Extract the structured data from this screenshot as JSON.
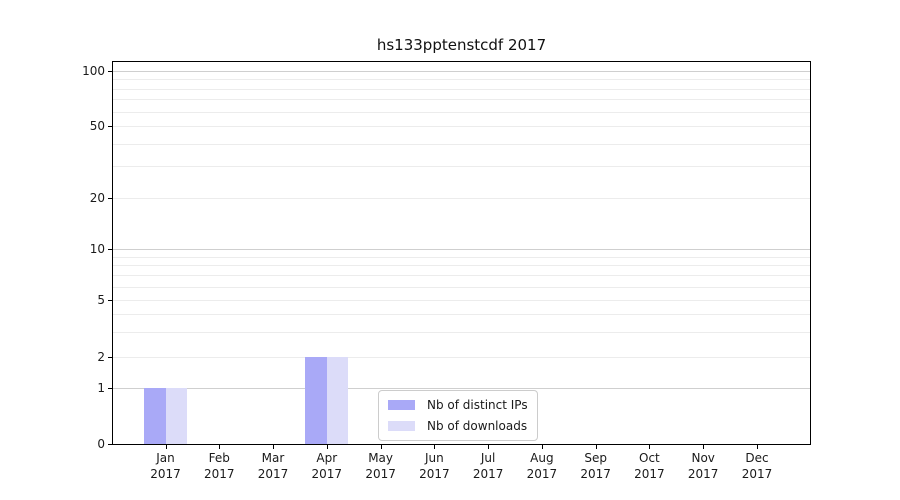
{
  "chart_data": {
    "type": "bar",
    "title": "hs133pptenstcdf 2017",
    "year_label": "2017",
    "categories": [
      "Jan",
      "Feb",
      "Mar",
      "Apr",
      "May",
      "Jun",
      "Jul",
      "Aug",
      "Sep",
      "Oct",
      "Nov",
      "Dec"
    ],
    "series": [
      {
        "name": "Nb of distinct IPs",
        "color": "#a9a9f7",
        "values": [
          1,
          0,
          0,
          2,
          0,
          0,
          0,
          0,
          0,
          0,
          0,
          0
        ]
      },
      {
        "name": "Nb of downloads",
        "color": "#dcdcf9",
        "values": [
          1,
          0,
          0,
          2,
          0,
          0,
          0,
          0,
          0,
          0,
          0,
          0
        ]
      }
    ],
    "y_axis": {
      "scale": "symlog",
      "tick_labels": [
        0,
        1,
        2,
        5,
        10,
        20,
        50,
        100
      ],
      "major_gridlines": [
        1,
        10,
        100
      ],
      "minor_gridlines": [
        2,
        3,
        4,
        5,
        6,
        7,
        8,
        9,
        20,
        30,
        40,
        50,
        60,
        70,
        80,
        90
      ],
      "ylim": [
        0,
        115
      ]
    },
    "x_axis": {
      "tick_label_line2": "2017"
    },
    "legend": {
      "position": "lower-center",
      "entries": [
        "Nb of distinct IPs",
        "Nb of downloads"
      ]
    },
    "grid": true,
    "style": {
      "grid_major_color": "#cfcfcf",
      "grid_minor_color": "#ececec",
      "spine_color": "#000000",
      "background": "#ffffff"
    }
  }
}
